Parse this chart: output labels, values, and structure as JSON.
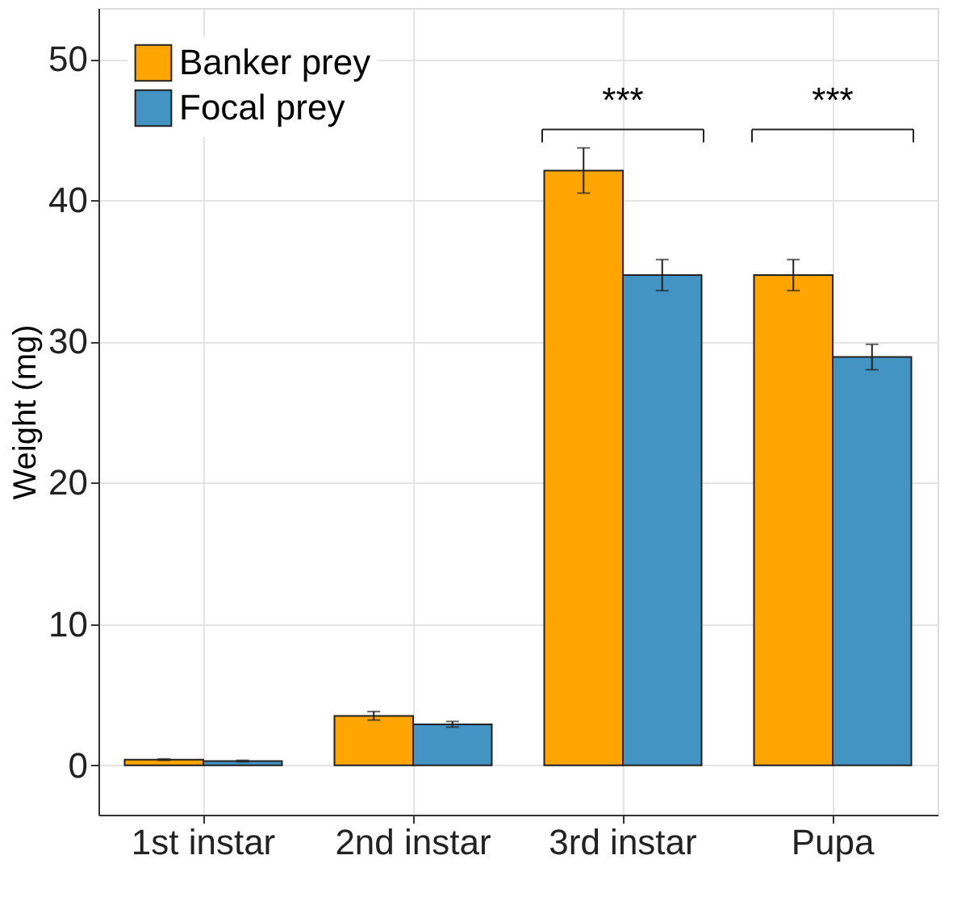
{
  "chart_data": {
    "type": "bar",
    "ylabel": "Weight (mg)",
    "categories": [
      "1st instar",
      "2nd instar",
      "3rd instar",
      "Pupa"
    ],
    "series": [
      {
        "name": "Banker prey",
        "color": "#ffa500",
        "values": [
          0.4,
          3.5,
          42.1,
          34.7
        ],
        "errors": [
          0.05,
          0.3,
          1.6,
          1.1
        ]
      },
      {
        "name": "Focal prey",
        "color": "#4393c3",
        "values": [
          0.3,
          2.9,
          34.7,
          28.9
        ],
        "errors": [
          0.05,
          0.2,
          1.1,
          0.9
        ]
      }
    ],
    "ylim": [
      -3.5,
      53.6
    ],
    "yticks": [
      0,
      10,
      20,
      30,
      40,
      50
    ],
    "grid": true,
    "legend": "top left",
    "annotations": [
      "***",
      "***"
    ]
  }
}
